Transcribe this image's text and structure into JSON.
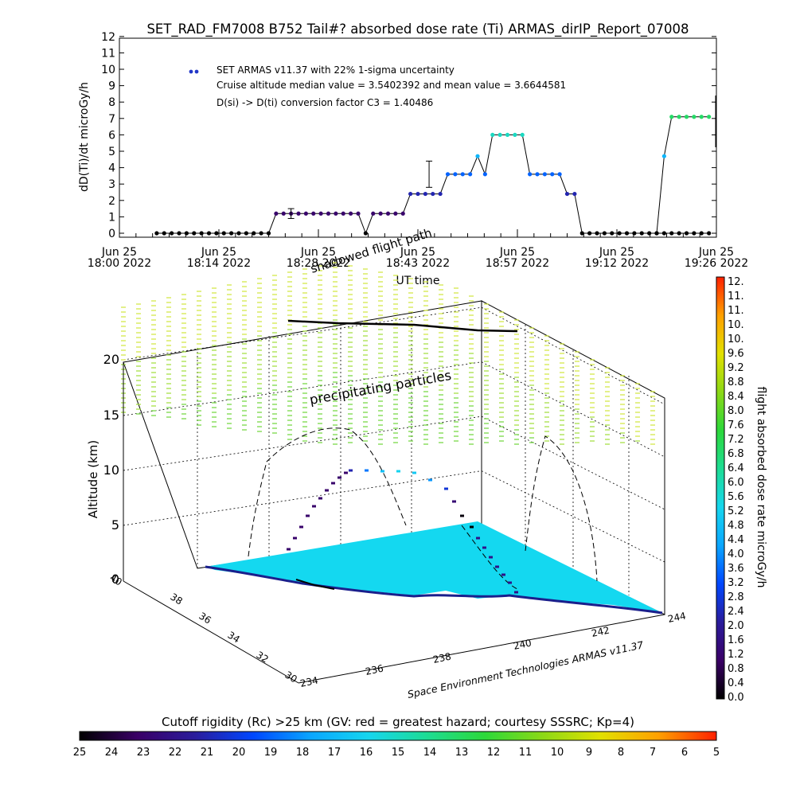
{
  "chart_data": [
    {
      "type": "line",
      "title": "SET_RAD_FM7008  B752 Tail#? absorbed dose rate (Ti) ARMAS_dirIP_Report_07008",
      "ylabel": "dD(Ti)/dt microGy/h",
      "xlabel": "UT time",
      "ylim": [
        0,
        12
      ],
      "y_ticks": [
        "0",
        "1",
        "2",
        "3",
        "4",
        "5",
        "6",
        "7",
        "8",
        "9",
        "10",
        "11",
        "12"
      ],
      "x_ticks": [
        {
          "top": "Jun 25",
          "bottom": "18:00 2022"
        },
        {
          "top": "Jun 25",
          "bottom": "18:14 2022"
        },
        {
          "top": "Jun 25",
          "bottom": "18:28 2022"
        },
        {
          "top": "Jun 25",
          "bottom": "18:43 2022"
        },
        {
          "top": "Jun 25",
          "bottom": "18:57 2022"
        },
        {
          "top": "Jun 25",
          "bottom": "19:12 2022"
        },
        {
          "top": "Jun 25",
          "bottom": "19:26 2022"
        }
      ],
      "legend_position": "top-left",
      "legend": "SET ARMAS v11.37 with 22% 1-sigma uncertainty",
      "annotations": [
        "Cruise altitude median value = 3.5402392 and mean value = 3.6644581",
        "D(si) -> D(ti) conversion factor C3 = 1.40486"
      ],
      "series": [
        {
          "name": "SET ARMAS v11.37 with 22% 1-sigma uncertainty",
          "x_minutes": [
            10,
            12,
            14,
            16,
            18,
            20,
            22,
            24,
            26,
            28,
            30,
            32,
            34,
            36,
            38,
            40,
            42,
            44,
            46,
            48,
            50,
            52,
            54,
            56,
            58,
            60,
            62,
            64,
            66,
            68,
            70,
            72,
            74,
            76,
            78,
            80,
            82,
            84,
            86,
            88,
            90,
            92,
            94,
            96,
            98,
            100,
            102,
            104,
            106,
            108,
            110,
            112,
            114,
            116,
            118,
            120,
            122,
            124,
            126,
            128,
            130,
            132,
            134,
            136,
            138,
            140,
            142,
            144,
            146,
            148,
            150,
            152,
            154,
            156,
            158
          ],
          "values": [
            0,
            0,
            0,
            0,
            0,
            0,
            0,
            0,
            0,
            0,
            0,
            0,
            0,
            0,
            0,
            0,
            1.2,
            1.2,
            1.2,
            1.2,
            1.2,
            1.2,
            1.2,
            1.2,
            1.2,
            1.2,
            1.2,
            1.2,
            0,
            1.2,
            1.2,
            1.2,
            1.2,
            1.2,
            2.4,
            2.4,
            2.4,
            2.4,
            2.4,
            3.6,
            3.6,
            3.6,
            3.6,
            4.7,
            3.6,
            6.0,
            6.0,
            6.0,
            6.0,
            6.0,
            3.6,
            3.6,
            3.6,
            3.6,
            3.6,
            2.4,
            2.4,
            0,
            0,
            0,
            0,
            0,
            0,
            0,
            0,
            0,
            0,
            0,
            0,
            0,
            0,
            0,
            0,
            0,
            0
          ],
          "error_bars": [
            {
              "x_minutes": 46,
              "value": 1.2,
              "low": 0.9,
              "high": 1.5
            },
            {
              "x_minutes": 83,
              "value": 3.6,
              "low": 2.8,
              "high": 4.4
            }
          ]
        },
        {
          "name": "",
          "x_minutes": [
            144,
            146,
            148,
            150,
            152,
            154,
            156,
            158
          ],
          "values": [
            0,
            4.7,
            7.1,
            7.1,
            7.1,
            7.1,
            7.1,
            7.1
          ]
        }
      ]
    },
    {
      "type": "scatter",
      "title": "",
      "subtitle": "Space Environment Technologies ARMAS v11.37",
      "zlabel": "Altitude (km)",
      "zlim": [
        0,
        20
      ],
      "z_ticks": [
        "0",
        "5",
        "10",
        "15",
        "20"
      ],
      "lat_ticks": [
        "30",
        "32",
        "34",
        "36",
        "38",
        "40"
      ],
      "lon_ticks": [
        "234",
        "236",
        "238",
        "240",
        "242",
        "244"
      ],
      "annotations": [
        "shadowed flight path",
        "precipitating particles"
      ],
      "colorbar_label": "flight absorbed dose rate microGy/h",
      "colorbar_ticks": [
        "0.0",
        "0.4",
        "0.8",
        "1.2",
        "1.6",
        "2.0",
        "2.4",
        "2.8",
        "3.2",
        "3.6",
        "4.0",
        "4.4",
        "4.8",
        "5.2",
        "5.6",
        "6.0",
        "6.4",
        "6.8",
        "7.2",
        "7.6",
        "8.0",
        "8.4",
        "8.8",
        "9.2",
        "9.6",
        "10.",
        "10.",
        "11.",
        "11.",
        "12."
      ]
    },
    {
      "type": "heatmap",
      "title": "Cutoff rigidity (Rc) >25 km (GV: red = greatest hazard; courtesy SSSRC; Kp=4)",
      "colorbar_ticks": [
        "25",
        "24",
        "23",
        "22",
        "21",
        "20",
        "19",
        "18",
        "17",
        "16",
        "15",
        "14",
        "13",
        "12",
        "11",
        "10",
        "9",
        "8",
        "7",
        "6",
        "5"
      ]
    }
  ],
  "colors": {
    "ground": "#14d8f0",
    "flight_path": "#000000",
    "particles": [
      "#d4e84a",
      "#a8e048",
      "#78d848"
    ],
    "dose_scale": [
      "#000000",
      "#3a0066",
      "#2a1c9c",
      "#0047ff",
      "#0aa6ff",
      "#16d6ee",
      "#1ddc94",
      "#2cd83a",
      "#8cd816",
      "#e2e000",
      "#ffa000",
      "#ff2000"
    ],
    "rigidity_scale": [
      "#000000",
      "#3a0066",
      "#2a1c9c",
      "#0047ff",
      "#0aa6ff",
      "#16d6ee",
      "#1ddc94",
      "#2cd83a",
      "#8cd816",
      "#e2e000",
      "#ffa000",
      "#ff2000"
    ]
  }
}
